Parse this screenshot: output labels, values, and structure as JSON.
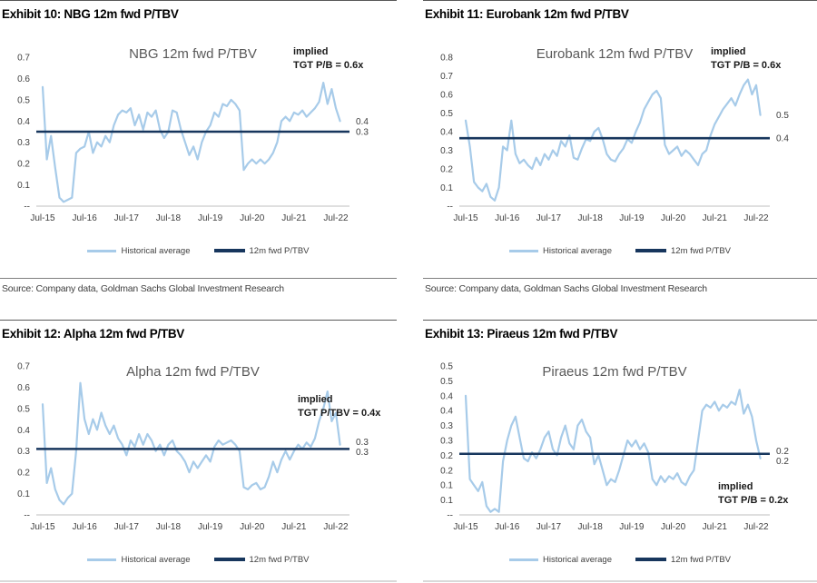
{
  "page": {
    "source_text": "Source: Company data, Goldman Sachs Global Investment Research",
    "legend": {
      "historical": "Historical average",
      "fwd": "12m fwd P/TBV"
    },
    "colors": {
      "historical_line": "#a7cbe9",
      "fwd_line": "#17365d",
      "axis": "#bfbfbf",
      "tick_text": "#404040"
    }
  },
  "chart_data": [
    {
      "type": "line",
      "exhibit_title": "Exhibit 10: NBG 12m fwd P/TBV",
      "chart_title": "NBG 12m fwd P/TBV",
      "annotation": {
        "line1": "implied",
        "line2": "TGT P/B = 0.6x"
      },
      "y_max": 0.7,
      "y_tick_step": 0.1,
      "y_tick_labels": [
        "0.7",
        "0.6",
        "0.5",
        "0.4",
        "0.3",
        "0.2",
        "0.1",
        "--"
      ],
      "x_tick_labels": [
        "Jul-15",
        "Jul-16",
        "Jul-17",
        "Jul-18",
        "Jul-19",
        "Jul-20",
        "Jul-21",
        "Jul-22"
      ],
      "x_years_span": 7.1,
      "end_labels": [
        "0.4",
        "0.3"
      ],
      "series": [
        {
          "name": "Historical average",
          "color": "#a7cbe9",
          "values": [
            0.56,
            0.22,
            0.33,
            0.18,
            0.04,
            0.02,
            0.03,
            0.04,
            0.25,
            0.27,
            0.28,
            0.35,
            0.25,
            0.3,
            0.28,
            0.33,
            0.3,
            0.38,
            0.43,
            0.45,
            0.44,
            0.46,
            0.38,
            0.43,
            0.36,
            0.44,
            0.42,
            0.45,
            0.36,
            0.32,
            0.35,
            0.45,
            0.44,
            0.36,
            0.3,
            0.24,
            0.28,
            0.22,
            0.3,
            0.35,
            0.38,
            0.44,
            0.42,
            0.48,
            0.47,
            0.5,
            0.48,
            0.45,
            0.17,
            0.2,
            0.22,
            0.2,
            0.22,
            0.2,
            0.22,
            0.25,
            0.3,
            0.4,
            0.42,
            0.4,
            0.44,
            0.43,
            0.45,
            0.42,
            0.44,
            0.46,
            0.49,
            0.58,
            0.48,
            0.55,
            0.46,
            0.4
          ]
        },
        {
          "name": "12m fwd P/TBV",
          "color": "#17365d",
          "type": "constant",
          "value": 0.35
        }
      ]
    },
    {
      "type": "line",
      "exhibit_title": "Exhibit 11: Eurobank 12m fwd P/TBV",
      "chart_title": "Eurobank 12m fwd P/TBV",
      "annotation": {
        "line1": "implied",
        "line2": "TGT P/B = 0.6x"
      },
      "y_max": 0.8,
      "y_tick_step": 0.1,
      "y_tick_labels": [
        "0.8",
        "0.7",
        "0.6",
        "0.5",
        "0.4",
        "0.3",
        "0.2",
        "0.1",
        "--"
      ],
      "x_tick_labels": [
        "Jul-15",
        "Jul-16",
        "Jul-17",
        "Jul-18",
        "Jul-19",
        "Jul-20",
        "Jul-21",
        "Jul-22"
      ],
      "x_years_span": 7.1,
      "end_labels": [
        "0.5",
        "0.4"
      ],
      "series": [
        {
          "name": "Historical average",
          "color": "#a7cbe9",
          "values": [
            0.46,
            0.32,
            0.13,
            0.1,
            0.08,
            0.12,
            0.05,
            0.03,
            0.1,
            0.32,
            0.3,
            0.46,
            0.28,
            0.23,
            0.25,
            0.22,
            0.2,
            0.26,
            0.22,
            0.28,
            0.25,
            0.3,
            0.27,
            0.35,
            0.32,
            0.38,
            0.26,
            0.25,
            0.31,
            0.36,
            0.35,
            0.4,
            0.42,
            0.36,
            0.28,
            0.25,
            0.24,
            0.28,
            0.31,
            0.36,
            0.34,
            0.4,
            0.45,
            0.52,
            0.56,
            0.6,
            0.62,
            0.58,
            0.33,
            0.28,
            0.3,
            0.32,
            0.27,
            0.3,
            0.28,
            0.25,
            0.22,
            0.28,
            0.3,
            0.38,
            0.44,
            0.48,
            0.52,
            0.55,
            0.58,
            0.54,
            0.6,
            0.65,
            0.68,
            0.6,
            0.65,
            0.49
          ]
        },
        {
          "name": "12m fwd P/TBV",
          "color": "#17365d",
          "type": "constant",
          "value": 0.365
        }
      ]
    },
    {
      "type": "line",
      "exhibit_title": "Exhibit 12: Alpha 12m fwd P/TBV",
      "chart_title": "Alpha 12m fwd P/TBV",
      "annotation": {
        "line1": "implied",
        "line2": "TGT P/TBV = 0.4x"
      },
      "y_max": 0.7,
      "y_tick_step": 0.1,
      "y_tick_labels": [
        "0.7",
        "0.6",
        "0.5",
        "0.4",
        "0.3",
        "0.2",
        "0.1",
        "--"
      ],
      "x_tick_labels": [
        "Jul-15",
        "Jul-16",
        "Jul-17",
        "Jul-18",
        "Jul-19",
        "Jul-20",
        "Jul-21",
        "Jul-22"
      ],
      "x_years_span": 7.1,
      "end_labels": [
        "0.3",
        "0.3"
      ],
      "series": [
        {
          "name": "Historical average",
          "color": "#a7cbe9",
          "values": [
            0.52,
            0.15,
            0.22,
            0.12,
            0.07,
            0.05,
            0.08,
            0.1,
            0.3,
            0.62,
            0.45,
            0.38,
            0.45,
            0.4,
            0.48,
            0.42,
            0.38,
            0.42,
            0.36,
            0.33,
            0.28,
            0.35,
            0.32,
            0.38,
            0.33,
            0.38,
            0.35,
            0.3,
            0.33,
            0.28,
            0.33,
            0.35,
            0.3,
            0.28,
            0.25,
            0.2,
            0.25,
            0.22,
            0.25,
            0.28,
            0.25,
            0.32,
            0.35,
            0.33,
            0.34,
            0.35,
            0.33,
            0.3,
            0.13,
            0.12,
            0.14,
            0.15,
            0.12,
            0.13,
            0.18,
            0.25,
            0.2,
            0.26,
            0.3,
            0.26,
            0.3,
            0.33,
            0.31,
            0.34,
            0.32,
            0.36,
            0.44,
            0.5,
            0.58,
            0.44,
            0.48,
            0.33
          ]
        },
        {
          "name": "12m fwd P/TBV",
          "color": "#17365d",
          "type": "constant",
          "value": 0.31
        }
      ]
    },
    {
      "type": "line",
      "exhibit_title": "Exhibit 13: Piraeus 12m fwd P/TBV",
      "chart_title": "Piraeus 12m fwd P/TBV",
      "annotation": {
        "line1": "implied",
        "line2": "TGT P/B = 0.2x"
      },
      "y_max": 0.5,
      "y_tick_step": 0.05,
      "y_tick_labels": [
        "0.5",
        "0.5",
        "0.4",
        "0.4",
        "0.3",
        "0.3",
        "0.2",
        "0.2",
        "0.1",
        "0.1",
        "--"
      ],
      "x_tick_labels": [
        "Jul-15",
        "Jul-16",
        "Jul-17",
        "Jul-18",
        "Jul-19",
        "Jul-20",
        "Jul-21",
        "Jul-22"
      ],
      "x_years_span": 7.1,
      "end_labels": [
        "0.2",
        "0.2"
      ],
      "series": [
        {
          "name": "Historical average",
          "color": "#a7cbe9",
          "values": [
            0.4,
            0.12,
            0.1,
            0.08,
            0.11,
            0.03,
            0.01,
            0.02,
            0.01,
            0.18,
            0.25,
            0.3,
            0.33,
            0.26,
            0.19,
            0.18,
            0.21,
            0.19,
            0.22,
            0.26,
            0.28,
            0.22,
            0.2,
            0.26,
            0.3,
            0.24,
            0.22,
            0.3,
            0.32,
            0.28,
            0.26,
            0.17,
            0.2,
            0.15,
            0.1,
            0.12,
            0.11,
            0.15,
            0.2,
            0.25,
            0.23,
            0.25,
            0.22,
            0.24,
            0.21,
            0.12,
            0.1,
            0.13,
            0.11,
            0.13,
            0.12,
            0.14,
            0.11,
            0.1,
            0.13,
            0.15,
            0.25,
            0.35,
            0.37,
            0.36,
            0.38,
            0.35,
            0.37,
            0.36,
            0.38,
            0.37,
            0.42,
            0.34,
            0.37,
            0.33,
            0.25,
            0.19
          ]
        },
        {
          "name": "12m fwd P/TBV",
          "color": "#17365d",
          "type": "constant",
          "value": 0.205
        }
      ]
    }
  ]
}
